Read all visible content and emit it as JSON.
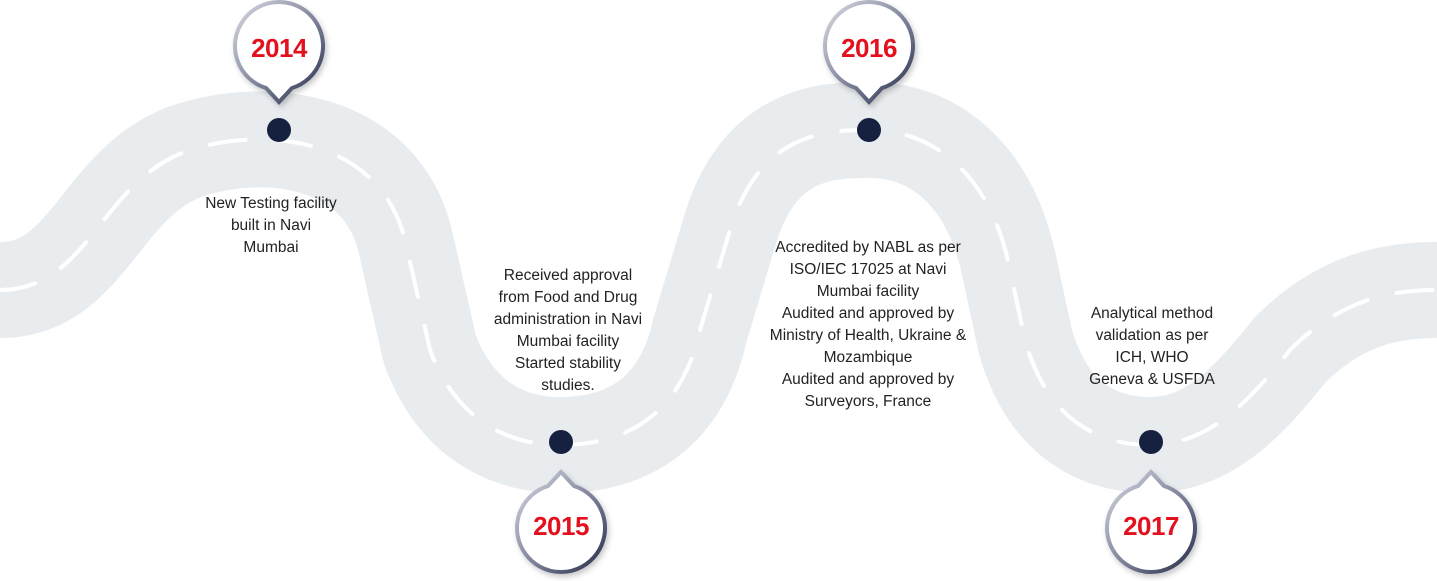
{
  "colors": {
    "road": "#e9ecef",
    "dash": "#ffffff",
    "node": "#16213f",
    "year_text": "#e3101e",
    "pin_ring": "#2f3550",
    "description_text": "#222222"
  },
  "milestones": [
    {
      "year": "2014",
      "description": "New Testing facility\nbuilt in Navi\nMumbai"
    },
    {
      "year": "2015",
      "description": "Received approval\nfrom Food and Drug\nadministration in Navi\nMumbai facility\nStarted stability\nstudies."
    },
    {
      "year": "2016",
      "description": "Accredited by NABL as per\nISO/IEC 17025 at Navi\nMumbai facility\nAudited and approved by\nMinistry of Health, Ukraine &\nMozambique\nAudited and approved by\nSurveyors, France"
    },
    {
      "year": "2017",
      "description": "Analytical method\nvalidation as per\nICH, WHO\nGeneva & USFDA"
    }
  ]
}
